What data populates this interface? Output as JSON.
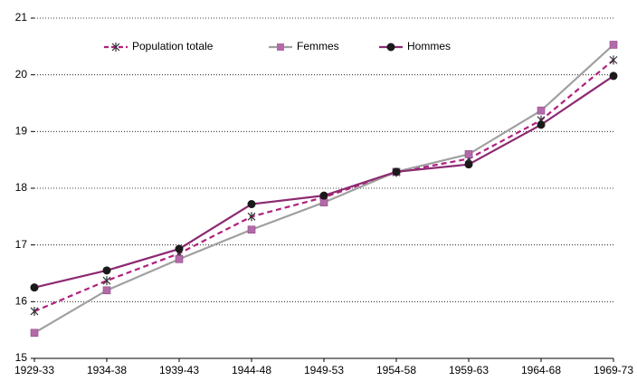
{
  "chart_data": {
    "type": "line",
    "categories": [
      "1929-33",
      "1934-38",
      "1939-43",
      "1944-48",
      "1949-53",
      "1954-58",
      "1959-63",
      "1964-68",
      "1969-73"
    ],
    "series": [
      {
        "name": "Population totale",
        "color": "#b0207e",
        "marker_color": "#333333",
        "marker": "asterisk",
        "dashed": true,
        "values": [
          15.83,
          16.37,
          16.85,
          17.5,
          17.84,
          18.28,
          18.52,
          19.2,
          20.26
        ]
      },
      {
        "name": "Femmes",
        "color": "#a0a0a0",
        "marker_color": "#b46aa8",
        "marker": "square",
        "dashed": false,
        "values": [
          15.45,
          16.2,
          16.75,
          17.27,
          17.75,
          18.29,
          18.6,
          19.37,
          20.53
        ]
      },
      {
        "name": "Hommes",
        "color": "#8c2a72",
        "marker_color": "#1a1a1a",
        "marker": "circle",
        "dashed": false,
        "values": [
          16.25,
          16.55,
          16.93,
          17.72,
          17.87,
          18.29,
          18.42,
          19.12,
          19.98
        ]
      }
    ],
    "ylim": [
      15,
      21
    ],
    "yticks": [
      15,
      16,
      17,
      18,
      19,
      20,
      21
    ],
    "grid": true
  }
}
